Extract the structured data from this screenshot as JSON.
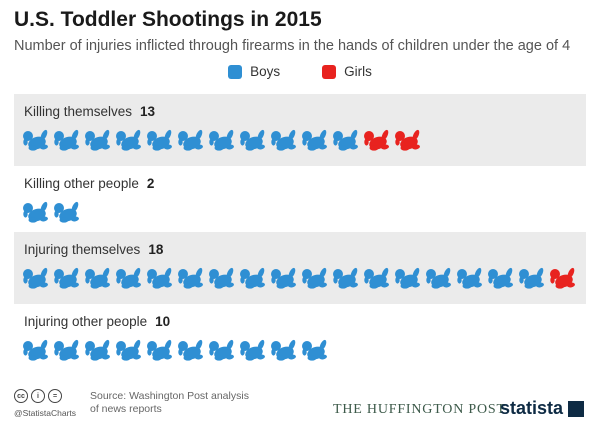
{
  "header": {
    "title": "U.S. Toddler Shootings in 2015",
    "subtitle": "Number of injuries inflicted through firearms in the hands of children under the age of 4"
  },
  "legend": {
    "boys_label": "Boys",
    "girls_label": "Girls"
  },
  "colors": {
    "boys": "#2f8fd3",
    "girls": "#e8231f",
    "row_shade": "#ebebeb"
  },
  "chart_data": {
    "type": "table",
    "title": "U.S. Toddler Shootings in 2015",
    "subtitle": "Number of injuries inflicted through firearms in the hands of children under the age of 4",
    "unit": "pictogram",
    "rows": [
      {
        "label": "Killing themselves",
        "total": 13,
        "boys": 11,
        "girls": 2
      },
      {
        "label": "Killing other people",
        "total": 2,
        "boys": 2,
        "girls": 0
      },
      {
        "label": "Injuring themselves",
        "total": 18,
        "boys": 17,
        "girls": 1
      },
      {
        "label": "Injuring other people",
        "total": 10,
        "boys": 10,
        "girls": 0
      }
    ],
    "series": [
      {
        "name": "Boys",
        "values": [
          11,
          2,
          17,
          10
        ]
      },
      {
        "name": "Girls",
        "values": [
          2,
          0,
          1,
          0
        ]
      }
    ],
    "legend_position": "top-center"
  },
  "footer": {
    "handle": "@StatistaCharts",
    "source_line1": "Source: Washington Post analysis",
    "source_line2": "of news reports",
    "partner": "THE HUFFINGTON POST",
    "brand": "statista",
    "license_icons": [
      "cc",
      "i",
      "="
    ]
  }
}
